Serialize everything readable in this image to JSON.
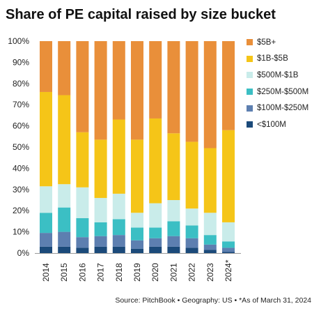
{
  "chart_data": {
    "type": "bar",
    "stacked": true,
    "title": "Share of PE capital raised by size bucket",
    "categories": [
      "2014",
      "2015",
      "2016",
      "2017",
      "2018",
      "2019",
      "2020",
      "2021",
      "2022",
      "2023",
      "2024*"
    ],
    "y_ticks": [
      "0%",
      "10%",
      "20%",
      "30%",
      "40%",
      "50%",
      "60%",
      "70%",
      "80%",
      "90%",
      "100%"
    ],
    "ylim": [
      0,
      100
    ],
    "grid": false,
    "legend_position": "right",
    "series": [
      {
        "name": "<$100M",
        "color": "#1b4a7a",
        "values": [
          3,
          3,
          2.5,
          3,
          3,
          2,
          3,
          3,
          2.5,
          1.5,
          0.5
        ]
      },
      {
        "name": "$100M-$250M",
        "color": "#5d7fb0",
        "values": [
          6.5,
          7,
          5,
          5,
          5.5,
          4,
          4,
          5,
          4.5,
          2.5,
          2
        ]
      },
      {
        "name": "$250M-$500M",
        "color": "#3bbfc4",
        "values": [
          9.5,
          11.5,
          9,
          6.5,
          7.5,
          6,
          5,
          7,
          6,
          4.5,
          3
        ]
      },
      {
        "name": "$500M-$1B",
        "color": "#c9ecea",
        "values": [
          12.5,
          11,
          14.5,
          11.5,
          12,
          7,
          11.5,
          10,
          8,
          10.5,
          9
        ]
      },
      {
        "name": "$1B-$5B",
        "color": "#f5c518",
        "values": [
          44.5,
          42,
          26,
          27.5,
          35,
          34.5,
          40,
          31.5,
          31.5,
          30.5,
          43.5
        ]
      },
      {
        "name": "$5B+",
        "color": "#e98f3a",
        "values": [
          24,
          25.5,
          43,
          46.5,
          37,
          46.5,
          36.5,
          43.5,
          47.5,
          50.5,
          42
        ]
      }
    ]
  },
  "source": "Source: PitchBook  •  Geography: US  •  *As of March 31, 2024"
}
